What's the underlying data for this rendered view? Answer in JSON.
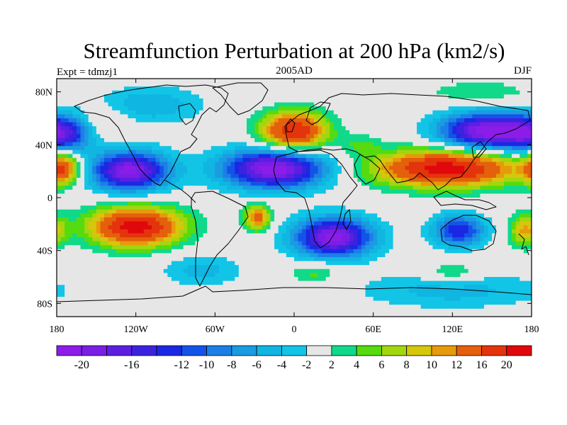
{
  "chart_data": {
    "type": "heatmap",
    "title": "Streamfunction Perturbation at 200 hPa (km2/s)",
    "left_label": "Expt = tdmzj1",
    "center_label": "2005AD",
    "right_label": "DJF",
    "projection": "cylindrical-equidistant",
    "xlim": [
      -180,
      180
    ],
    "ylim": [
      -90,
      90
    ],
    "x_ticks": [
      {
        "value": -180,
        "label": "180"
      },
      {
        "value": -120,
        "label": "120W"
      },
      {
        "value": -60,
        "label": "60W"
      },
      {
        "value": 0,
        "label": "0"
      },
      {
        "value": 60,
        "label": "60E"
      },
      {
        "value": 120,
        "label": "120E"
      },
      {
        "value": 180,
        "label": "180"
      }
    ],
    "y_ticks": [
      {
        "value": 80,
        "label": "80N"
      },
      {
        "value": 40,
        "label": "40N"
      },
      {
        "value": 0,
        "label": "0"
      },
      {
        "value": -40,
        "label": "40S"
      },
      {
        "value": -80,
        "label": "80S"
      }
    ],
    "colorbar": {
      "boundaries": [
        -22,
        -20,
        -18,
        -16,
        -14,
        -12,
        -10,
        -8,
        -6,
        -4,
        -2,
        2,
        4,
        6,
        8,
        10,
        12,
        16,
        20,
        24
      ],
      "colors": [
        "#8c1de8",
        "#7a1ee6",
        "#5c1fe2",
        "#3c22df",
        "#1a28e4",
        "#1453e8",
        "#1c7fe6",
        "#1a9be2",
        "#10b5e2",
        "#12c5e6",
        "#e6e6e6",
        "#10d98a",
        "#56da10",
        "#a2d60e",
        "#d6c60c",
        "#e69a0c",
        "#e4600c",
        "#e4340c",
        "#e0080c"
      ],
      "labels": [
        {
          "boundary_index": 1,
          "label": "-20"
        },
        {
          "boundary_index": 3,
          "label": "-16"
        },
        {
          "boundary_index": 5,
          "label": "-12"
        },
        {
          "boundary_index": 6,
          "label": "-10"
        },
        {
          "boundary_index": 7,
          "label": "-8"
        },
        {
          "boundary_index": 8,
          "label": "-6"
        },
        {
          "boundary_index": 9,
          "label": "-4"
        },
        {
          "boundary_index": 10,
          "label": "-2"
        },
        {
          "boundary_index": 11,
          "label": "2"
        },
        {
          "boundary_index": 12,
          "label": "4"
        },
        {
          "boundary_index": 13,
          "label": "6"
        },
        {
          "boundary_index": 14,
          "label": "8"
        },
        {
          "boundary_index": 15,
          "label": "10"
        },
        {
          "boundary_index": 16,
          "label": "12"
        },
        {
          "boundary_index": 17,
          "label": "16"
        },
        {
          "boundary_index": 18,
          "label": "20"
        }
      ]
    },
    "field_centers": [
      {
        "lon": -125,
        "lat": 20,
        "value": -21,
        "lon_radius": 30,
        "lat_radius": 15
      },
      {
        "lon": -15,
        "lat": 22,
        "value": -22,
        "lon_radius": 40,
        "lat_radius": 15
      },
      {
        "lon": 30,
        "lat": -30,
        "value": -21,
        "lon_radius": 30,
        "lat_radius": 15
      },
      {
        "lon": 145,
        "lat": 50,
        "value": -21,
        "lon_radius": 35,
        "lat_radius": 14
      },
      {
        "lon": -175,
        "lat": 48,
        "value": -14,
        "lon_radius": 25,
        "lat_radius": 14
      },
      {
        "lon": 125,
        "lat": -25,
        "value": -14,
        "lon_radius": 20,
        "lat_radius": 12
      },
      {
        "lon": -70,
        "lat": -55,
        "value": -5,
        "lon_radius": 30,
        "lat_radius": 12
      },
      {
        "lon": -110,
        "lat": 70,
        "value": -6,
        "lon_radius": 40,
        "lat_radius": 14
      },
      {
        "lon": 120,
        "lat": -70,
        "value": -5,
        "lon_radius": 70,
        "lat_radius": 14
      },
      {
        "lon": -120,
        "lat": -22,
        "value": 22,
        "lon_radius": 35,
        "lat_radius": 15
      },
      {
        "lon": 0,
        "lat": 50,
        "value": 20,
        "lon_radius": 25,
        "lat_radius": 15
      },
      {
        "lon": 115,
        "lat": 22,
        "value": 22,
        "lon_radius": 55,
        "lat_radius": 14
      },
      {
        "lon": -175,
        "lat": 22,
        "value": 14,
        "lon_radius": 12,
        "lat_radius": 12
      },
      {
        "lon": -28,
        "lat": -15,
        "value": 14,
        "lon_radius": 10,
        "lat_radius": 10
      },
      {
        "lon": 175,
        "lat": -25,
        "value": 10,
        "lon_radius": 12,
        "lat_radius": 12
      },
      {
        "lon": -145,
        "lat": 55,
        "value": 5,
        "lon_radius": 20,
        "lat_radius": 14
      },
      {
        "lon": 15,
        "lat": -57,
        "value": 5,
        "lon_radius": 18,
        "lat_radius": 8
      },
      {
        "lon": 120,
        "lat": -57,
        "value": 5,
        "lon_radius": 22,
        "lat_radius": 8
      },
      {
        "lon": 140,
        "lat": 80,
        "value": 4,
        "lon_radius": 40,
        "lat_radius": 8
      },
      {
        "lon": 50,
        "lat": 40,
        "value": 4,
        "lon_radius": 15,
        "lat_radius": 8
      }
    ]
  }
}
